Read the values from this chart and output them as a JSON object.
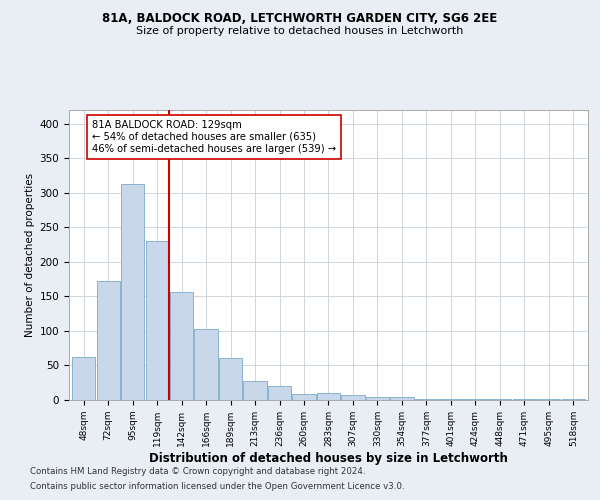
{
  "title1": "81A, BALDOCK ROAD, LETCHWORTH GARDEN CITY, SG6 2EE",
  "title2": "Size of property relative to detached houses in Letchworth",
  "xlabel": "Distribution of detached houses by size in Letchworth",
  "ylabel": "Number of detached properties",
  "categories": [
    "48sqm",
    "72sqm",
    "95sqm",
    "119sqm",
    "142sqm",
    "166sqm",
    "189sqm",
    "213sqm",
    "236sqm",
    "260sqm",
    "283sqm",
    "307sqm",
    "330sqm",
    "354sqm",
    "377sqm",
    "401sqm",
    "424sqm",
    "448sqm",
    "471sqm",
    "495sqm",
    "518sqm"
  ],
  "values": [
    63,
    173,
    313,
    230,
    157,
    103,
    61,
    28,
    21,
    9,
    10,
    7,
    5,
    4,
    2,
    2,
    1,
    1,
    1,
    1,
    1
  ],
  "bar_color": "#c8d8ea",
  "bar_edge_color": "#7aaac8",
  "vline_x": 3.5,
  "vline_color": "#cc0000",
  "annotation_text": "81A BALDOCK ROAD: 129sqm\n← 54% of detached houses are smaller (635)\n46% of semi-detached houses are larger (539) →",
  "annotation_box_color": "white",
  "annotation_box_edge": "#cc0000",
  "ylim": [
    0,
    420
  ],
  "yticks": [
    0,
    50,
    100,
    150,
    200,
    250,
    300,
    350,
    400
  ],
  "footer1": "Contains HM Land Registry data © Crown copyright and database right 2024.",
  "footer2": "Contains public sector information licensed under the Open Government Licence v3.0.",
  "bg_color": "#e8eef4",
  "plot_bg_color": "#ffffff",
  "grid_color": "#c8d0d8"
}
